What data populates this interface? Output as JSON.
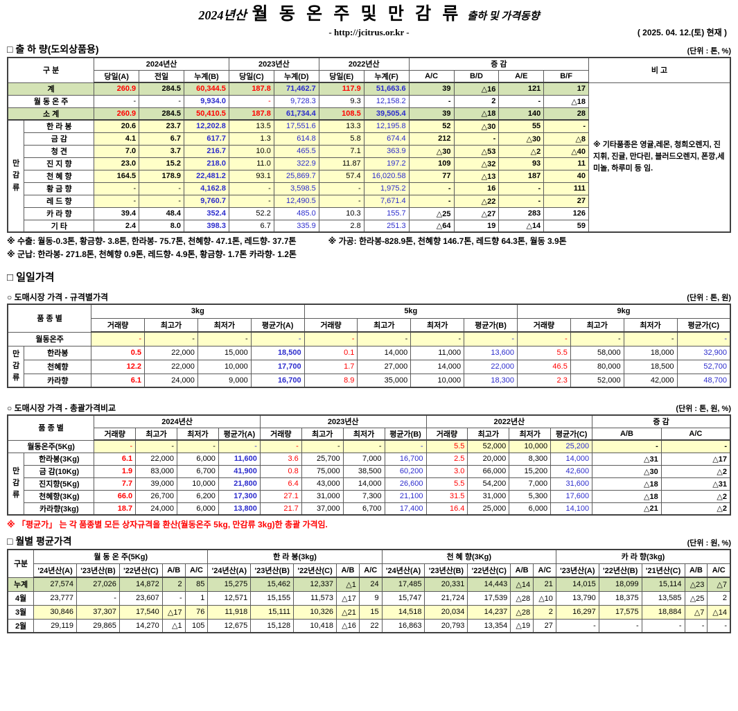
{
  "colors": {
    "accent_red": "#ff0000",
    "accent_blue": "#2b2bcc",
    "green_row_bg": "#d4e3b5",
    "yellow_row_bg": "#ffffc8"
  },
  "header": {
    "year_label": "2024년산",
    "title": "월 동 온 주 및 만 감 류",
    "title_suffix": "출하 및 가격동향",
    "url": "- http://jcitrus.or.kr -",
    "date": "( 2025. 04. 12.(토) 현재 )"
  },
  "shipment": {
    "section_title": "□ 출 하 량(도외상품용)",
    "unit": "(단위 : 톤, %)",
    "bigo_note": "※ 기타품종은 영귤,레몬, 청희오렌지, 진지휘, 진귤, 만다린, 블러드오렌지, 폰깡,세미놀, 하루미 등 임.",
    "header": {
      "label": {
        "text": "구    분",
        "colspan": 2
      },
      "groups": [
        {
          "t": "2024년산",
          "s": 3
        },
        {
          "t": "2023년산",
          "s": 2
        },
        {
          "t": "2022년산",
          "s": 2
        },
        {
          "t": "증       감",
          "s": 4
        }
      ],
      "subs": [
        "당일(A)",
        "전일",
        "누계(B)",
        "당일(C)",
        "누계(D)",
        "당일(E)",
        "누계(F)",
        "A/C",
        "B/D",
        "A/E",
        "B/F"
      ],
      "tail": {
        "text": "비 고"
      }
    },
    "rows": [
      {
        "label": "계",
        "labelspan": 2,
        "bg": "green",
        "bigo": {
          "span": 12
        },
        "v": [
          "260.9",
          "284.5",
          "60,344.5",
          "187.8",
          "71,462.7",
          "117.9",
          "51,663.6",
          "39",
          "△16",
          "121",
          "17"
        ],
        "c": "rB kB rB rB bB rB bB kB kB kB kB"
      },
      {
        "label": "월 동 온 주",
        "labelspan": 2,
        "v": [
          "-",
          "-",
          "9,934.0",
          "-",
          "9,728.3",
          "9.3",
          "12,158.2",
          "-",
          "2",
          "-",
          "△18"
        ],
        "c": "k k bB r b k b kB kB kB kB"
      },
      {
        "label": "소   계",
        "labelspan": 2,
        "bg": "green",
        "thick": true,
        "v": [
          "260.9",
          "284.5",
          "50,410.5",
          "187.8",
          "61,734.4",
          "108.5",
          "39,505.4",
          "39",
          "△18",
          "140",
          "28"
        ],
        "c": "rB kB rB rB bB rB bB kB kB kB kB"
      },
      {
        "label": "한 라 봉",
        "bg": "yellow",
        "group": {
          "label": "만감류",
          "span": 9
        },
        "v": [
          "20.6",
          "23.7",
          "12,202.8",
          "13.5",
          "17,551.6",
          "13.3",
          "12,195.8",
          "52",
          "△30",
          "55",
          "-"
        ],
        "c": "kB kB bB k b k b kB kB kB kB"
      },
      {
        "label": "금   감",
        "bg": "yellow",
        "v": [
          "4.1",
          "6.7",
          "617.7",
          "1.3",
          "614.8",
          "5.8",
          "674.4",
          "212",
          "-",
          "△30",
          "△8"
        ],
        "c": "kB kB bB k b k b kB kB kB kB"
      },
      {
        "label": "청   견",
        "bg": "yellow",
        "v": [
          "7.0",
          "3.7",
          "216.7",
          "10.0",
          "465.5",
          "7.1",
          "363.9",
          "△30",
          "△53",
          "△2",
          "△40"
        ],
        "c": "kB kB bB k b k b kB kB kB kB"
      },
      {
        "label": "진 지 향",
        "bg": "yellow",
        "v": [
          "23.0",
          "15.2",
          "218.0",
          "11.0",
          "322.9",
          "11.87",
          "197.2",
          "109",
          "△32",
          "93",
          "11"
        ],
        "c": "kB kB bB k b k b kB kB kB kB"
      },
      {
        "label": "천 혜 향",
        "bg": "yellow",
        "v": [
          "164.5",
          "178.9",
          "22,481.2",
          "93.1",
          "25,869.7",
          "57.4",
          "16,020.58",
          "77",
          "△13",
          "187",
          "40"
        ],
        "c": "kB kB bB k b k b kB kB kB kB"
      },
      {
        "label": "황 금 향",
        "bg": "yellow",
        "v": [
          "-",
          "-",
          "4,162.8",
          "-",
          "3,598.5",
          "-",
          "1,975.2",
          "-",
          "16",
          "-",
          "111"
        ],
        "c": "k k bB k b k b kB kB kB kB"
      },
      {
        "label": "레 드 향",
        "bg": "yellow",
        "v": [
          "-",
          "-",
          "9,760.7",
          "-",
          "12,490.5",
          "-",
          "7,671.4",
          "-",
          "△22",
          "-",
          "27"
        ],
        "c": "k k bB k b k b kB kB kB kB"
      },
      {
        "label": "카 라 향",
        "v": [
          "39.4",
          "48.4",
          "352.4",
          "52.2",
          "485.0",
          "10.3",
          "155.7",
          "△25",
          "△27",
          "283",
          "126"
        ],
        "c": "kB kB bB k b k b kB kB kB kB"
      },
      {
        "label": "기   타",
        "v": [
          "2.4",
          "8.0",
          "398.3",
          "6.7",
          "335.9",
          "2.8",
          "251.3",
          "△64",
          "19",
          "△14",
          "59"
        ],
        "c": "kB kB bB k b k b kB kB kB kB"
      }
    ],
    "note1_left": "※ 수출: 월동-0.3톤, 황금향- 3.8톤, 한라봉- 75.7톤, 천혜향- 47.1톤, 레드향- 37.7톤",
    "note1_right": "※ 가공:  한라봉-828.9톤, 천혜향 146.7톤, 레드향 64.3톤, 월동 3.9톤",
    "note2": "※ 군납: 한라봉- 271.8톤, 천혜향 0.9톤, 레드향- 4.9톤, 황금향- 1.7톤 카라향- 1.2톤"
  },
  "daily": {
    "section_title": "□ 일일가격",
    "sub_title": "○ 도매시장 가격 - 규격별가격",
    "unit": "(단위 : 톤, 원)",
    "header": {
      "label": {
        "text": "품 종 별",
        "colspan": 2
      },
      "groups": [
        {
          "t": "3kg",
          "s": 4
        },
        {
          "t": "5kg",
          "s": 4
        },
        {
          "t": "9kg",
          "s": 4
        }
      ],
      "subs": [
        "거래량",
        "최고가",
        "최저가",
        "평균가(A)",
        "거래량",
        "최고가",
        "최저가",
        "평균가(B)",
        "거래량",
        "최고가",
        "최저가",
        "평균가(C)"
      ]
    },
    "rows": [
      {
        "label": "월동온주",
        "labelspan": 2,
        "bg": "yellow",
        "v": [
          "-",
          "-",
          "-",
          "-",
          "-",
          "-",
          "-",
          "-",
          "-",
          "-",
          "-",
          "-"
        ],
        "c": "r k k b r k k b r k k b"
      },
      {
        "label": "한라봉",
        "group": {
          "label": "만감류",
          "span": 3
        },
        "v": [
          "0.5",
          "22,000",
          "15,000",
          "18,500",
          "0.1",
          "14,000",
          "11,000",
          "13,600",
          "5.5",
          "58,000",
          "18,000",
          "32,900"
        ],
        "c": "rB k k bB r k k b r k k b"
      },
      {
        "label": "천혜향",
        "v": [
          "12.2",
          "22,000",
          "10,000",
          "17,700",
          "1.7",
          "27,000",
          "14,000",
          "22,000",
          "46.5",
          "80,000",
          "18,500",
          "52,700"
        ],
        "c": "rB k k bB r k k b r k k b"
      },
      {
        "label": "카라향",
        "v": [
          "6.1",
          "24,000",
          "9,000",
          "16,700",
          "8.9",
          "35,000",
          "10,000",
          "18,300",
          "2.3",
          "52,000",
          "42,000",
          "48,700"
        ],
        "c": "rB k k bB r k k b r k k b"
      }
    ]
  },
  "overall": {
    "sub_title": "○ 도매시장 가격 - 총괄가격비교",
    "unit": "(단위 : 톤, 원, %)",
    "header": {
      "label": {
        "text": "품 종 별",
        "colspan": 2
      },
      "groups": [
        {
          "t": "2024년산",
          "s": 4
        },
        {
          "t": "2023년산",
          "s": 4
        },
        {
          "t": "2022년산",
          "s": 4
        },
        {
          "t": "증   감",
          "s": 2
        }
      ],
      "subs": [
        "거래량",
        "최고가",
        "최저가",
        "평균가(A)",
        "거래량",
        "최고가",
        "최저가",
        "평균가(B)",
        "거래량",
        "최고가",
        "최저가",
        "평균가(C)",
        "A/B",
        "A/C"
      ]
    },
    "rows": [
      {
        "label": "월동온주(5Kg)",
        "labelspan": 2,
        "bg": "yellow",
        "v": [
          "-",
          "-",
          "-",
          "-",
          "-",
          "-",
          "-",
          "-",
          "5.5",
          "52,000",
          "10,000",
          "25,200",
          "-",
          "-"
        ],
        "c": "r k k b r k k b r k k b kB kB"
      },
      {
        "label": "한라봉(3Kg)",
        "group": {
          "label": "만감류",
          "span": 5
        },
        "v": [
          "6.1",
          "22,000",
          "6,000",
          "11,600",
          "3.6",
          "25,700",
          "7,000",
          "16,700",
          "2.5",
          "20,000",
          "8,300",
          "14,000",
          "△31",
          "△17"
        ],
        "c": "rB k k bB r k k b r k k b kB kB"
      },
      {
        "label": "금 감(10Kg)",
        "v": [
          "1.9",
          "83,000",
          "6,700",
          "41,900",
          "0.8",
          "75,000",
          "38,500",
          "60,200",
          "3.0",
          "66,000",
          "15,200",
          "42,600",
          "△30",
          "△2"
        ],
        "c": "rB k k bB r k k b r k k b kB kB"
      },
      {
        "label": "진지향(5Kg)",
        "v": [
          "7.7",
          "39,000",
          "10,000",
          "21,800",
          "6.4",
          "43,000",
          "14,000",
          "26,600",
          "5.5",
          "54,200",
          "7,000",
          "31,600",
          "△18",
          "△31"
        ],
        "c": "rB k k bB r k k b r k k b kB kB"
      },
      {
        "label": "천혜향(3Kg)",
        "v": [
          "66.0",
          "26,700",
          "6,200",
          "17,300",
          "27.1",
          "31,000",
          "7,300",
          "21,100",
          "31.5",
          "31,000",
          "5,300",
          "17,600",
          "△18",
          "△2"
        ],
        "c": "rB k k bB r k k b r k k b kB kB"
      },
      {
        "label": "카라향(3kg)",
        "v": [
          "18.7",
          "24,000",
          "6,000",
          "13,800",
          "21.7",
          "37,000",
          "6,700",
          "17,400",
          "16.4",
          "25,000",
          "6,000",
          "14,100",
          "△21",
          "△2"
        ],
        "c": "rB k k bB r k k b r k k b kB kB"
      }
    ],
    "avg_note": "※ 「평균가」 는 각 품종별 모든 상자규격을 환산(월동온주 5kg, 만감류 3kg)한 총괄 가격임."
  },
  "monthly": {
    "section_title": "□ 월별 평균가격",
    "unit": "(단위 : 원, %)",
    "header": {
      "label": {
        "text": "구분",
        "colspan": 1
      },
      "groups": [
        {
          "t": "월 동 온 주(5Kg)",
          "s": 5
        },
        {
          "t": "한  라  봉(3kg)",
          "s": 5
        },
        {
          "t": "천 혜 향(3Kg)",
          "s": 5
        },
        {
          "t": "카 라 향(3kg)",
          "s": 5
        }
      ],
      "subs": [
        "'24년산(A)",
        "'23년산(B)",
        "'22년산(C)",
        "A/B",
        "A/C",
        "'24년산(A)",
        "'23년산(B)",
        "'22년산(C)",
        "A/B",
        "A/C",
        "'24년산(A)",
        "'23년산(B)",
        "'22년산(C)",
        "A/B",
        "A/C",
        "'23년산(A)",
        "'22년산(B)",
        "'21년산(C)",
        "A/B",
        "A/C"
      ]
    },
    "rows": [
      {
        "label": "누계",
        "bg": "green",
        "v": [
          "27,574",
          "27,026",
          "14,872",
          "2",
          "85",
          "15,275",
          "15,462",
          "12,337",
          "△1",
          "24",
          "17,485",
          "20,331",
          "14,443",
          "△14",
          "21",
          "14,015",
          "18,099",
          "15,114",
          "△23",
          "△7"
        ],
        "c": "k k k k k k k k k k k k k k k k k k k k"
      },
      {
        "label": "4월",
        "dotted": true,
        "v": [
          "23,777",
          "-",
          "23,607",
          "-",
          "1",
          "12,571",
          "15,155",
          "11,573",
          "△17",
          "9",
          "15,747",
          "21,724",
          "17,539",
          "△28",
          "△10",
          "13,790",
          "18,375",
          "13,585",
          "△25",
          "2"
        ],
        "c": "k k k k k k k k k k k k k k k k k k k k"
      },
      {
        "label": "3월",
        "bg": "yellow",
        "dotted": true,
        "v": [
          "30,846",
          "37,307",
          "17,540",
          "△17",
          "76",
          "11,918",
          "15,111",
          "10,326",
          "△21",
          "15",
          "14,518",
          "20,034",
          "14,237",
          "△28",
          "2",
          "16,297",
          "17,575",
          "18,884",
          "△7",
          "△14"
        ],
        "c": "k k k k k k k k k k k k k k k k k k k k"
      },
      {
        "label": "2월",
        "v": [
          "29,119",
          "29,865",
          "14,270",
          "△1",
          "105",
          "12,675",
          "15,128",
          "10,418",
          "△16",
          "22",
          "16,863",
          "20,793",
          "13,354",
          "△19",
          "27",
          "-",
          "-",
          "-",
          "-",
          "-"
        ],
        "c": "k k k k k k k k k k k k k k k k k k k k"
      }
    ]
  }
}
